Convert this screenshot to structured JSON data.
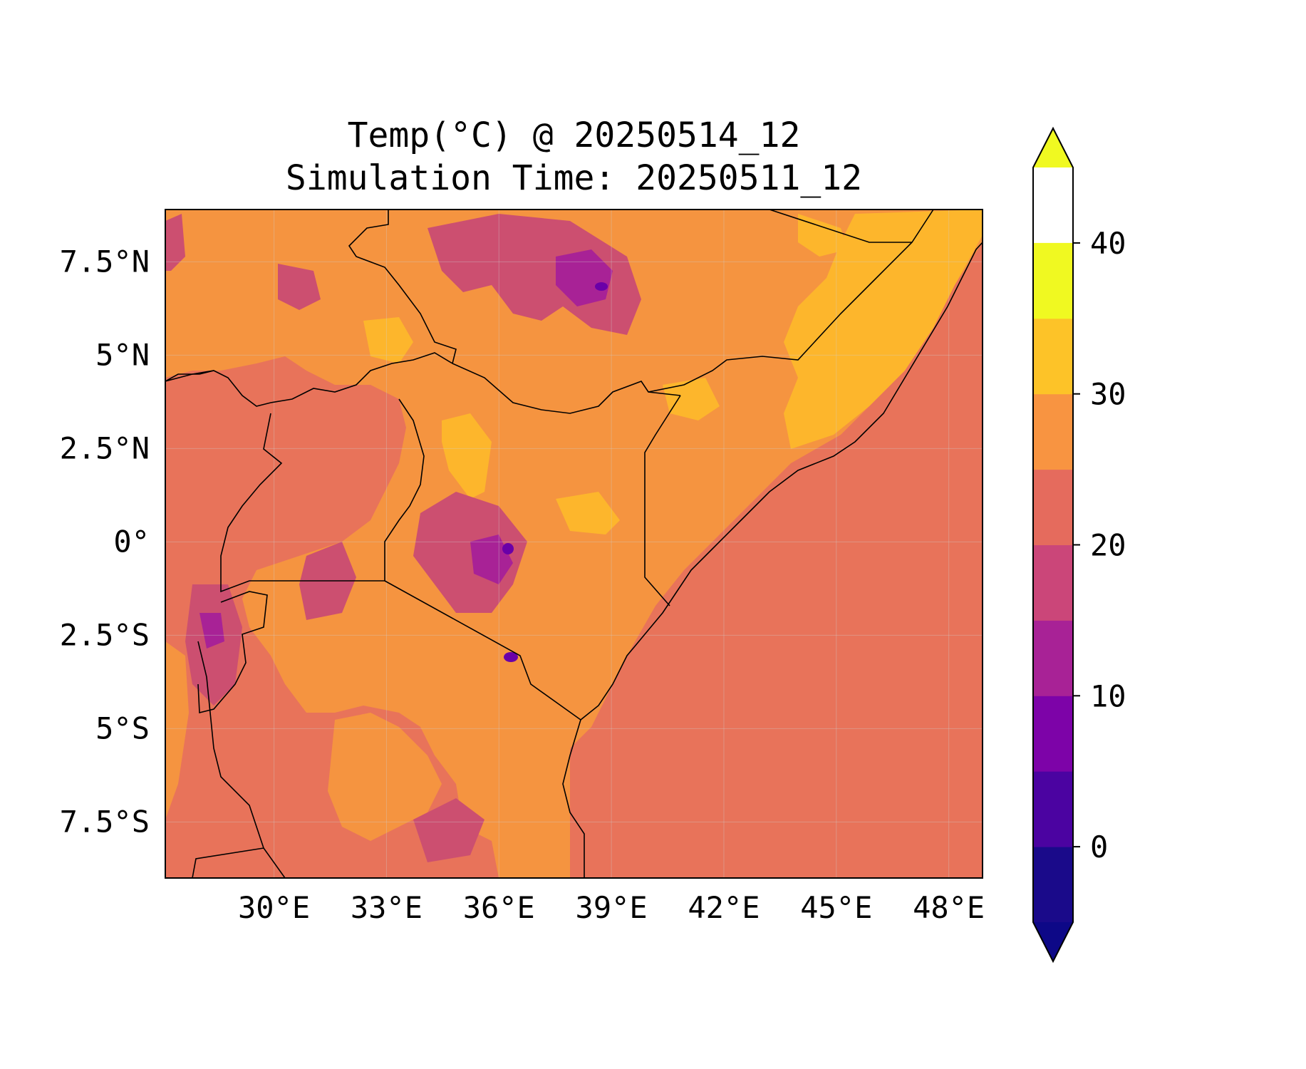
{
  "chart_data": {
    "type": "map",
    "title": "Temp(°C) @ 20250514_12",
    "subtitle": "Simulation Time: 20250511_12",
    "variable": "Temp(°C)",
    "extent": {
      "lon": [
        27.1,
        48.9
      ],
      "lat": [
        -9.0,
        8.9
      ]
    },
    "x_ticks": [
      {
        "value": 30,
        "label": "30°E"
      },
      {
        "value": 33,
        "label": "33°E"
      },
      {
        "value": 36,
        "label": "36°E"
      },
      {
        "value": 39,
        "label": "39°E"
      },
      {
        "value": 42,
        "label": "42°E"
      },
      {
        "value": 45,
        "label": "45°E"
      },
      {
        "value": 48,
        "label": "48°E"
      }
    ],
    "y_ticks": [
      {
        "value": 7.5,
        "label": "7.5°N"
      },
      {
        "value": 5,
        "label": "5°N"
      },
      {
        "value": 2.5,
        "label": "2.5°N"
      },
      {
        "value": 0,
        "label": "0°"
      },
      {
        "value": -2.5,
        "label": "2.5°S"
      },
      {
        "value": -5,
        "label": "5°S"
      },
      {
        "value": -7.5,
        "label": "7.5°S"
      }
    ],
    "grid": true,
    "colorbar": {
      "levels": [
        -5,
        0,
        5,
        10,
        15,
        20,
        25,
        30,
        35,
        40,
        45
      ],
      "colors": [
        "#1a0a8a",
        "#4b03a1",
        "#7d03a8",
        "#a82296",
        "#cb4679",
        "#e56b5d",
        "#f89441",
        "#fdc328",
        "#f0f921"
      ],
      "under_color": "#0d0887",
      "over_color": "#f0f921",
      "ticks": [
        {
          "value": 0,
          "label": "0"
        },
        {
          "value": 10,
          "label": "10"
        },
        {
          "value": 20,
          "label": "20"
        },
        {
          "value": 30,
          "label": "30"
        },
        {
          "value": 40,
          "label": "40"
        }
      ],
      "extend": "both"
    }
  }
}
